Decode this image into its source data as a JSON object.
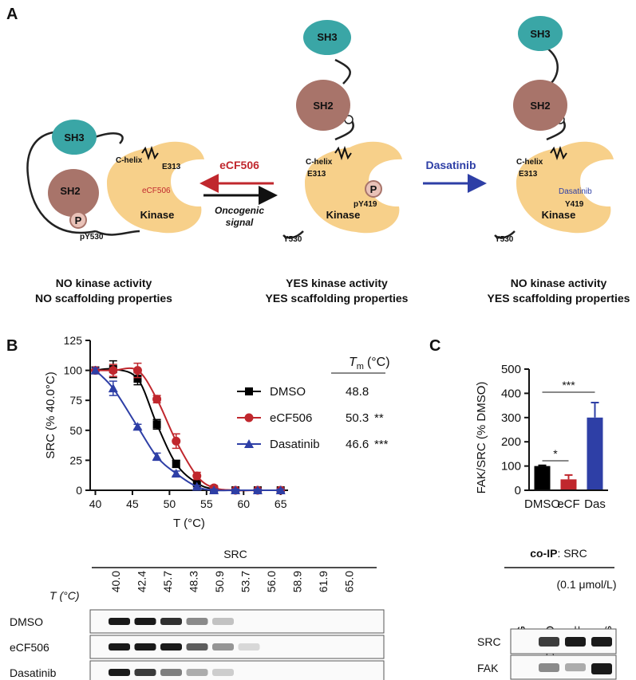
{
  "panel_labels": [
    "A",
    "B",
    "C"
  ],
  "diagram": {
    "inactive": {
      "sh3": "SH3",
      "sh2": "SH2",
      "c_helix": "C-helix",
      "e313": "E313",
      "inhibitor": "eCF506",
      "kinase": "Kinase",
      "p": "P",
      "tyr": "pY530"
    },
    "active": {
      "sh3": "SH3",
      "sh2": "SH2",
      "c_helix": "C-helix",
      "e313": "E313",
      "p": "P",
      "tyr_kinase": "pY419",
      "kinase": "Kinase",
      "tyr": "Y530"
    },
    "dasatinib_bound": {
      "sh3": "SH3",
      "sh2": "SH2",
      "c_helix": "C-helix",
      "e313": "E313",
      "inhibitor": "Dasatinib",
      "tyr_kinase": "Y419",
      "kinase": "Kinase",
      "tyr": "Y530"
    },
    "arrows": {
      "ecf506": "eCF506",
      "oncogenic": [
        "Oncogenic",
        "signal"
      ],
      "dasatinib": "Dasatinib"
    },
    "captions": [
      [
        "NO kinase activity",
        "NO scaffolding properties"
      ],
      [
        "YES kinase activity",
        "YES scaffolding properties"
      ],
      [
        "NO kinase activity",
        "YES scaffolding properties"
      ]
    ]
  },
  "chart_data": [
    {
      "type": "line",
      "y_label": "SRC (% 40.0°C)",
      "x_label": "T (°C)",
      "x": [
        40,
        42.4,
        45.7,
        48.3,
        50.9,
        53.7,
        56,
        58.9,
        61.9,
        65
      ],
      "xlim": [
        39.3,
        66
      ],
      "xticks": [
        40,
        45,
        50,
        55,
        60,
        65
      ],
      "ylim": [
        0,
        125
      ],
      "yticks": [
        0,
        25,
        50,
        75,
        100,
        125
      ],
      "grid": false,
      "tm_header": {
        "symbol": "T",
        "subscript": "m",
        "unit": "(°C)"
      },
      "series": [
        {
          "name": "DMSO",
          "color": "#000000",
          "marker": "square",
          "values": [
            100,
            101,
            93,
            55,
            22,
            6,
            1,
            0,
            0,
            0
          ],
          "errors": [
            2,
            7,
            5,
            4,
            3,
            2,
            1,
            1,
            1,
            1
          ],
          "tm": 48.8,
          "significance": ""
        },
        {
          "name": "eCF506",
          "color": "#c0272d",
          "marker": "circle",
          "values": [
            100,
            100,
            100,
            76,
            41,
            12,
            2,
            0,
            0,
            0
          ],
          "errors": [
            2,
            5,
            6,
            3,
            6,
            3,
            1,
            1,
            1,
            1
          ],
          "tm": 50.3,
          "significance": "**"
        },
        {
          "name": "Dasatinib",
          "color": "#2e3fa6",
          "marker": "triangle",
          "values": [
            100,
            85,
            53,
            28,
            14,
            3,
            0,
            0,
            0,
            0
          ],
          "errors": [
            2,
            6,
            2,
            3,
            2,
            1,
            1,
            1,
            1,
            1
          ],
          "tm": 46.6,
          "significance": "***"
        }
      ]
    },
    {
      "type": "bar",
      "y_label": "FAK/SRC (% DMSO)",
      "categories": [
        "DMSO",
        "eCF",
        "Das"
      ],
      "values": [
        100,
        45,
        300
      ],
      "errors": [
        3,
        18,
        62
      ],
      "colors": [
        "#000000",
        "#c0272d",
        "#2e3fa6"
      ],
      "ylim": [
        0,
        500
      ],
      "yticks": [
        0,
        100,
        200,
        300,
        400,
        500
      ],
      "grid": false,
      "annotations": [
        "*",
        "***"
      ]
    }
  ],
  "blots": {
    "title": "SRC",
    "axis_label": "T (°C)",
    "temperatures": [
      "40.0",
      "42.4",
      "45.7",
      "48.3",
      "50.9",
      "53.7",
      "56.0",
      "58.9",
      "61.9",
      "65.0"
    ],
    "rows": [
      "DMSO",
      "eCF506",
      "Dasatinib"
    ],
    "coip_title": {
      "bold": "co-IP",
      "rest": ": SRC"
    },
    "concentration": "(0.1 μmol/L)",
    "lanes": [
      "IgG",
      "DMSO",
      "eCF",
      "Das"
    ],
    "coip_rows": [
      "SRC",
      "FAK"
    ]
  }
}
